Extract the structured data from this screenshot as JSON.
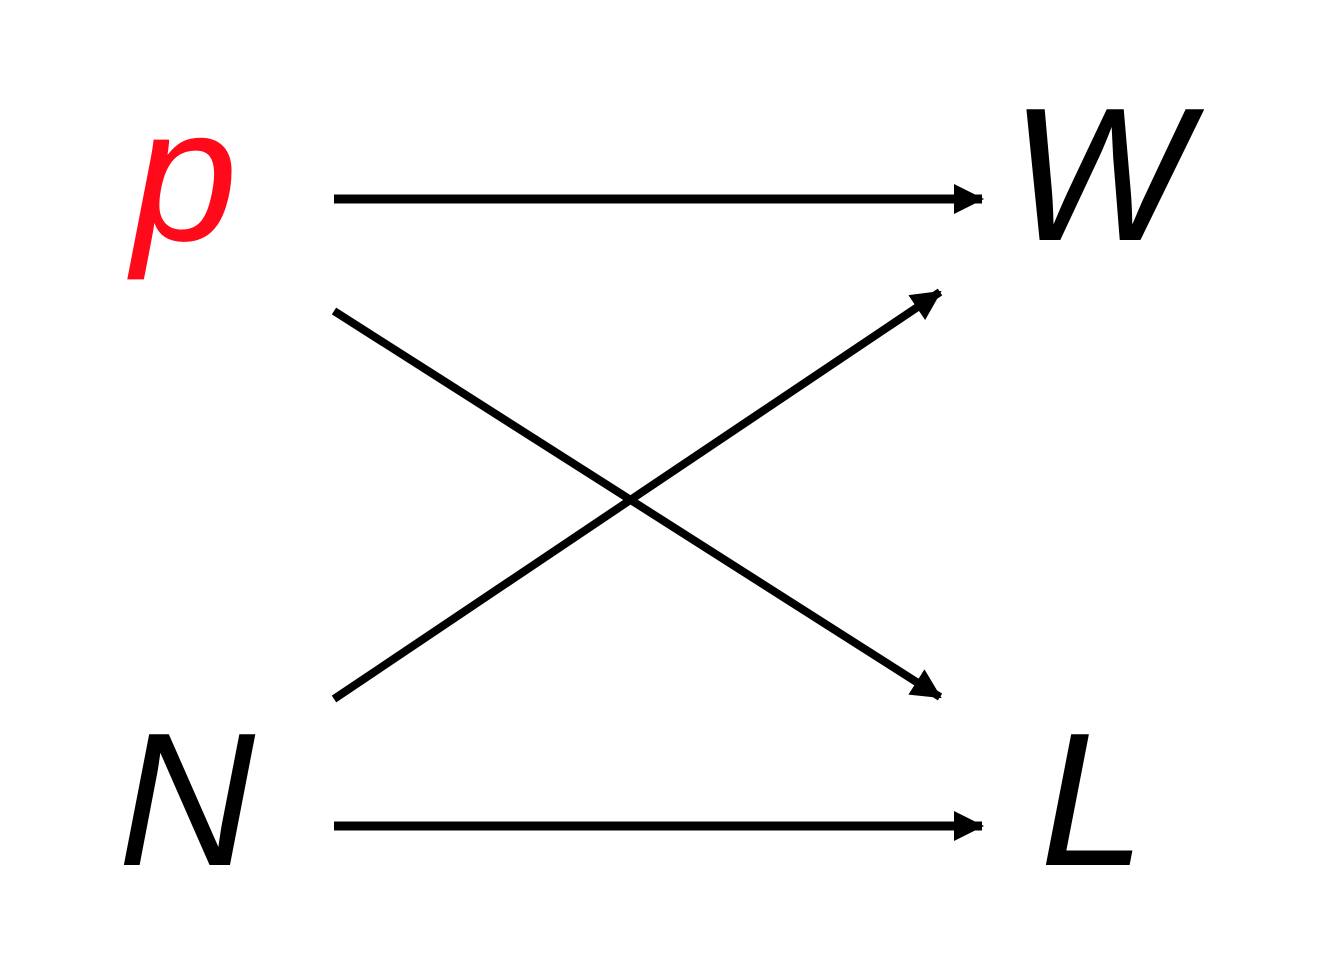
{
  "diagram": {
    "nodes": {
      "p": {
        "label": "p",
        "color": "#ff0a1a"
      },
      "W": {
        "label": "W",
        "color": "#000000"
      },
      "N": {
        "label": "N",
        "color": "#000000"
      },
      "L": {
        "label": "L",
        "color": "#000000"
      }
    },
    "edges": [
      {
        "from": "p",
        "to": "W"
      },
      {
        "from": "p",
        "to": "L"
      },
      {
        "from": "N",
        "to": "W"
      },
      {
        "from": "N",
        "to": "L"
      }
    ],
    "edge_color": "#000000"
  }
}
